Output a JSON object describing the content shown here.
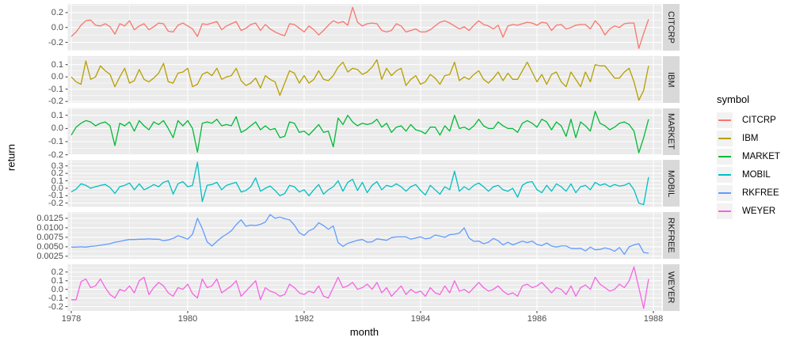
{
  "axes": {
    "x_label": "month",
    "y_label": "return"
  },
  "legend": {
    "title": "symbol",
    "position": "right",
    "key_background": "#f2f2f2"
  },
  "theme": {
    "panel_background": "#ebebeb",
    "gridline_color": "#ffffff",
    "strip_background": "#d9d9d9",
    "tick_label_color": "#4d4d4d",
    "tick_mark_color": "#333333",
    "text_color": "#000000"
  },
  "chart_data": {
    "type": "line",
    "title": "",
    "xlabel": "month",
    "ylabel": "return",
    "facet": "rows by symbol, free y scales",
    "legend_title": "symbol",
    "legend_position": "right",
    "grid": true,
    "x_start_year": 1978,
    "x_months_per_step": 1,
    "xlim": [
      1977.94,
      1988.14
    ],
    "x_ticks": [
      1978,
      1980,
      1982,
      1984,
      1986,
      1988
    ],
    "x_tick_labels": [
      "1978",
      "1980",
      "1982",
      "1984",
      "1986",
      "1988"
    ],
    "x_minor_ticks": [
      1979,
      1981,
      1983,
      1985,
      1987
    ],
    "series": [
      {
        "name": "CITCRP",
        "color": "#F8766D",
        "ylim": [
          -0.31,
          0.315
        ],
        "y_ticks": [
          0.2,
          0.0,
          -0.2
        ],
        "y_tick_labels": [
          "0.2",
          "0.0",
          "-0.2"
        ],
        "values": [
          -0.12,
          -0.06,
          0.03,
          0.09,
          0.1,
          0.03,
          0.02,
          0.05,
          0.01,
          -0.09,
          0.05,
          0.02,
          0.09,
          -0.03,
          0.02,
          0.05,
          -0.03,
          0.01,
          0.06,
          0.05,
          -0.05,
          -0.06,
          0.03,
          0.06,
          0.02,
          -0.02,
          -0.12,
          0.05,
          0.04,
          0.06,
          0.08,
          -0.03,
          0.02,
          0.05,
          0.08,
          -0.04,
          -0.01,
          0.04,
          0.06,
          -0.04,
          0.04,
          -0.02,
          -0.06,
          -0.09,
          -0.11,
          0.05,
          0.04,
          -0.01,
          -0.06,
          0.02,
          -0.03,
          -0.1,
          -0.04,
          0.03,
          0.09,
          0.06,
          0.08,
          0.03,
          0.27,
          0.07,
          0.02,
          0.05,
          0.06,
          0.05,
          -0.04,
          -0.06,
          -0.04,
          0.05,
          0.02,
          -0.06,
          -0.04,
          -0.02,
          -0.06,
          -0.06,
          -0.03,
          0.02,
          0.07,
          0.09,
          0.06,
          0.02,
          -0.02,
          0.01,
          -0.04,
          0.03,
          0.09,
          0.04,
          0.02,
          -0.02,
          0.03,
          -0.13,
          0.02,
          0.04,
          0.03,
          0.05,
          0.07,
          0.06,
          0.03,
          0.07,
          0.06,
          -0.04,
          0.03,
          0.04,
          -0.02,
          0.0,
          0.03,
          0.04,
          0.04,
          -0.02,
          0.09,
          0.02,
          -0.1,
          -0.02,
          0.02,
          0.0,
          0.05,
          0.06,
          0.06,
          -0.28,
          -0.08,
          0.11
        ]
      },
      {
        "name": "IBM",
        "color": "#B79F00",
        "ylim": [
          -0.21,
          0.17
        ],
        "y_ticks": [
          0.1,
          0.0,
          -0.1,
          -0.2
        ],
        "y_tick_labels": [
          "0.1",
          "0.0",
          "-0.1",
          "-0.2"
        ],
        "values": [
          0.0,
          -0.04,
          -0.06,
          0.13,
          -0.02,
          0.0,
          0.09,
          0.05,
          0.02,
          -0.08,
          0.0,
          0.07,
          -0.05,
          -0.03,
          0.06,
          -0.02,
          -0.04,
          -0.01,
          0.03,
          0.11,
          -0.04,
          -0.05,
          0.03,
          0.04,
          0.07,
          -0.08,
          -0.06,
          0.02,
          0.04,
          0.01,
          0.07,
          -0.02,
          0.0,
          0.01,
          0.07,
          -0.03,
          -0.07,
          -0.05,
          -0.01,
          -0.09,
          0.01,
          -0.02,
          -0.04,
          -0.15,
          -0.05,
          0.05,
          0.03,
          -0.05,
          0.01,
          -0.05,
          -0.02,
          0.05,
          -0.02,
          -0.03,
          0.01,
          0.08,
          0.12,
          0.04,
          0.07,
          0.06,
          0.02,
          0.04,
          0.08,
          0.14,
          -0.02,
          0.07,
          0.01,
          0.05,
          0.07,
          -0.07,
          -0.02,
          0.01,
          -0.06,
          -0.04,
          0.02,
          -0.01,
          -0.06,
          0.01,
          0.02,
          0.12,
          -0.03,
          0.0,
          -0.02,
          0.02,
          0.05,
          -0.02,
          -0.05,
          -0.01,
          0.04,
          -0.03,
          0.03,
          -0.02,
          -0.02,
          0.05,
          0.12,
          0.04,
          -0.04,
          0.02,
          -0.06,
          0.02,
          0.04,
          -0.04,
          -0.08,
          0.04,
          -0.02,
          -0.08,
          0.04,
          -0.04,
          0.1,
          0.09,
          0.09,
          0.04,
          -0.01,
          -0.01,
          0.04,
          0.07,
          -0.04,
          -0.19,
          -0.11,
          0.09
        ]
      },
      {
        "name": "MARKET",
        "color": "#00BA38",
        "ylim": [
          -0.2,
          0.155
        ],
        "y_ticks": [
          0.1,
          0.0,
          -0.1,
          -0.2
        ],
        "y_tick_labels": [
          "0.1",
          "0.0",
          "-0.1",
          "-0.2"
        ],
        "values": [
          -0.05,
          0.01,
          0.04,
          0.06,
          0.05,
          0.02,
          0.04,
          0.05,
          0.02,
          -0.13,
          0.04,
          0.02,
          0.05,
          -0.02,
          0.06,
          0.02,
          -0.01,
          0.05,
          0.03,
          0.06,
          0.0,
          -0.07,
          0.06,
          0.02,
          0.06,
          0.0,
          -0.18,
          0.04,
          0.05,
          0.04,
          0.07,
          0.02,
          0.03,
          0.02,
          0.09,
          -0.03,
          -0.01,
          0.02,
          0.05,
          -0.01,
          0.02,
          -0.01,
          0.0,
          -0.07,
          -0.06,
          0.05,
          0.04,
          -0.03,
          -0.02,
          -0.05,
          -0.01,
          0.03,
          -0.03,
          -0.02,
          -0.14,
          0.08,
          0.03,
          0.1,
          0.05,
          0.02,
          0.04,
          0.03,
          0.04,
          0.07,
          0.01,
          0.04,
          -0.03,
          0.01,
          0.02,
          -0.02,
          0.03,
          -0.01,
          -0.02,
          -0.04,
          0.01,
          0.01,
          -0.05,
          0.02,
          -0.02,
          0.1,
          0.0,
          0.01,
          -0.01,
          0.02,
          0.07,
          0.02,
          0.0,
          0.0,
          0.05,
          0.02,
          0.0,
          0.0,
          -0.03,
          0.04,
          0.06,
          0.04,
          0.01,
          0.07,
          0.05,
          -0.01,
          0.05,
          0.02,
          -0.06,
          0.07,
          -0.07,
          0.05,
          0.02,
          -0.02,
          0.13,
          0.04,
          0.02,
          -0.01,
          0.01,
          0.04,
          0.05,
          0.03,
          -0.02,
          -0.185,
          -0.07,
          0.07
        ]
      },
      {
        "name": "MOBIL",
        "color": "#00BFC4",
        "ylim": [
          -0.25,
          0.378
        ],
        "y_ticks": [
          0.3,
          0.2,
          0.1,
          0.0,
          -0.1,
          -0.2
        ],
        "y_tick_labels": [
          "0.3",
          "0.2",
          "0.1",
          "0.0",
          "-0.1",
          "-0.2"
        ],
        "values": [
          -0.05,
          -0.01,
          0.06,
          0.04,
          0.0,
          0.02,
          0.04,
          0.05,
          0.01,
          -0.07,
          0.02,
          0.04,
          0.07,
          -0.02,
          0.06,
          -0.02,
          0.01,
          0.05,
          0.02,
          0.08,
          0.1,
          -0.08,
          0.06,
          0.09,
          0.02,
          0.04,
          0.35,
          -0.18,
          0.04,
          0.05,
          0.08,
          -0.02,
          0.04,
          0.06,
          0.08,
          -0.05,
          -0.03,
          0.02,
          0.14,
          -0.04,
          0.0,
          0.03,
          -0.03,
          -0.1,
          -0.07,
          0.04,
          0.02,
          -0.05,
          -0.02,
          -0.1,
          -0.02,
          0.05,
          -0.08,
          -0.02,
          0.02,
          0.1,
          -0.04,
          0.08,
          0.12,
          -0.03,
          0.08,
          -0.06,
          0.04,
          0.09,
          -0.02,
          0.04,
          0.02,
          0.06,
          0.02,
          -0.04,
          0.02,
          0.05,
          -0.03,
          -0.09,
          0.04,
          -0.02,
          -0.08,
          0.02,
          -0.02,
          0.23,
          -0.04,
          0.02,
          -0.02,
          0.04,
          0.07,
          0.02,
          -0.04,
          0.02,
          0.04,
          -0.02,
          -0.04,
          0.0,
          -0.12,
          0.04,
          0.08,
          0.09,
          -0.02,
          -0.06,
          0.04,
          -0.04,
          0.06,
          0.02,
          -0.04,
          0.06,
          -0.06,
          0.02,
          0.04,
          -0.02,
          0.08,
          0.04,
          0.06,
          0.02,
          0.05,
          0.03,
          0.04,
          0.07,
          -0.02,
          -0.2,
          -0.22,
          0.15
        ]
      },
      {
        "name": "RKFREE",
        "color": "#619CFF",
        "ylim": [
          0.0018,
          0.0141
        ],
        "y_ticks": [
          0.0125,
          0.01,
          0.0075,
          0.005,
          0.0025
        ],
        "y_tick_labels": [
          "0.0125",
          "0.0100",
          "0.0075",
          "0.0050",
          "0.0025"
        ],
        "values": [
          0.0049,
          0.0049,
          0.005,
          0.0049,
          0.0051,
          0.0052,
          0.0054,
          0.0056,
          0.0058,
          0.0062,
          0.0064,
          0.0067,
          0.0069,
          0.0069,
          0.007,
          0.007,
          0.0071,
          0.007,
          0.007,
          0.0066,
          0.0068,
          0.0072,
          0.0079,
          0.0075,
          0.007,
          0.0083,
          0.0125,
          0.0098,
          0.0063,
          0.0052,
          0.0064,
          0.0075,
          0.0083,
          0.0092,
          0.0108,
          0.0121,
          0.0104,
          0.0107,
          0.0106,
          0.0109,
          0.0115,
          0.0135,
          0.0125,
          0.0128,
          0.0124,
          0.0121,
          0.0107,
          0.0087,
          0.008,
          0.0092,
          0.0098,
          0.0113,
          0.0106,
          0.0096,
          0.0105,
          0.0061,
          0.0051,
          0.0059,
          0.0063,
          0.0067,
          0.0069,
          0.0062,
          0.0063,
          0.0071,
          0.0069,
          0.0067,
          0.0074,
          0.0076,
          0.0076,
          0.0076,
          0.007,
          0.0073,
          0.0076,
          0.0071,
          0.0073,
          0.0081,
          0.0078,
          0.0075,
          0.0082,
          0.0083,
          0.0086,
          0.01,
          0.0073,
          0.0064,
          0.0065,
          0.0058,
          0.0062,
          0.0072,
          0.0066,
          0.0055,
          0.0062,
          0.0055,
          0.006,
          0.0065,
          0.0061,
          0.0065,
          0.0056,
          0.0053,
          0.006,
          0.0052,
          0.0049,
          0.0052,
          0.0052,
          0.0046,
          0.0045,
          0.0046,
          0.0039,
          0.0049,
          0.0042,
          0.0043,
          0.0047,
          0.0044,
          0.0038,
          0.0048,
          0.003,
          0.005,
          0.0055,
          0.0058,
          0.0035,
          0.0033
        ]
      },
      {
        "name": "WEYER",
        "color": "#F564E3",
        "ylim": [
          -0.25,
          0.29
        ],
        "y_ticks": [
          0.2,
          0.1,
          0.0,
          -0.1,
          -0.2
        ],
        "y_tick_labels": [
          "0.2",
          "0.1",
          "0.0",
          "-0.1",
          "-0.2"
        ],
        "values": [
          -0.12,
          -0.12,
          0.09,
          0.12,
          0.02,
          0.04,
          0.12,
          0.02,
          -0.06,
          -0.1,
          0.0,
          -0.02,
          0.04,
          -0.04,
          0.1,
          0.14,
          -0.06,
          0.02,
          0.08,
          0.04,
          -0.04,
          -0.08,
          0.02,
          0.0,
          0.06,
          -0.05,
          -0.1,
          0.12,
          0.02,
          0.04,
          0.12,
          -0.04,
          0.0,
          0.04,
          0.1,
          -0.08,
          -0.02,
          0.04,
          0.1,
          -0.12,
          0.02,
          -0.02,
          -0.04,
          -0.08,
          -0.06,
          0.06,
          0.02,
          -0.04,
          -0.06,
          -0.02,
          -0.04,
          0.04,
          -0.08,
          -0.1,
          0.02,
          0.14,
          0.02,
          0.04,
          0.08,
          0.0,
          0.02,
          0.06,
          0.0,
          0.08,
          -0.04,
          0.02,
          -0.08,
          -0.02,
          0.04,
          -0.06,
          0.0,
          -0.04,
          -0.02,
          -0.08,
          0.02,
          -0.04,
          -0.06,
          0.04,
          -0.04,
          0.1,
          -0.02,
          0.0,
          -0.04,
          0.02,
          0.08,
          0.02,
          -0.02,
          0.0,
          0.04,
          -0.02,
          -0.06,
          -0.04,
          -0.08,
          0.04,
          0.06,
          0.02,
          0.04,
          0.08,
          0.02,
          -0.04,
          0.02,
          0.0,
          -0.06,
          0.04,
          -0.08,
          0.02,
          0.05,
          0.0,
          0.14,
          0.06,
          0.02,
          -0.02,
          0.0,
          0.06,
          0.02,
          0.1,
          0.26,
          0.02,
          -0.22,
          0.12
        ]
      }
    ]
  }
}
